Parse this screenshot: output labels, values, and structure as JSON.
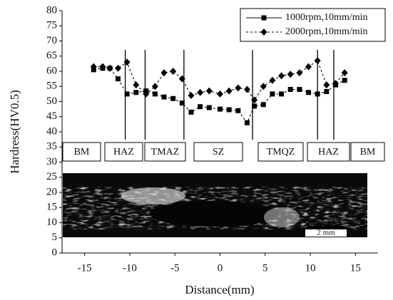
{
  "chart_data": {
    "type": "line",
    "x_label": "Distance(mm)",
    "y_label": "Hardress(HV0.5)",
    "xlim": [
      -17.5,
      17.5
    ],
    "xticks": [
      -15,
      -10,
      -5,
      0,
      5,
      10,
      15
    ],
    "ylim": [
      0,
      80
    ],
    "yticks": [
      0,
      5,
      10,
      15,
      20,
      25,
      30,
      35,
      40,
      45,
      50,
      55,
      60,
      65,
      70,
      75,
      80
    ],
    "x": [
      -14,
      -13,
      -12.2,
      -11.3,
      -10.3,
      -9.3,
      -8.2,
      -7.2,
      -6.2,
      -5.2,
      -4.2,
      -3.2,
      -2.2,
      -1.2,
      0,
      1,
      2,
      3,
      3.8,
      4.8,
      5.8,
      6.8,
      7.8,
      8.8,
      9.8,
      10.8,
      11.8,
      12.8,
      13.8
    ],
    "series": [
      {
        "name": "1000rpm,10mm/min",
        "marker": "square",
        "color": "#000000",
        "values": [
          60.5,
          61,
          61,
          57.5,
          52.5,
          53,
          53.5,
          52.5,
          51.5,
          51,
          49.5,
          46.5,
          48.3,
          48,
          47.5,
          47.3,
          47,
          43,
          48.5,
          49,
          52.5,
          52.5,
          54,
          54,
          53,
          52.5,
          53.3,
          55.5,
          57
        ]
      },
      {
        "name": "2000rpm,10mm/min",
        "marker": "diamond",
        "color": "#000000",
        "values": [
          61.5,
          61.5,
          61,
          61,
          63,
          55.5,
          52.5,
          55,
          59.5,
          60,
          57.5,
          52,
          53,
          53.5,
          52.5,
          53.5,
          54.5,
          54,
          50.5,
          55,
          57,
          58.5,
          59,
          59.5,
          61.5,
          63.5,
          55.5,
          56,
          59.5
        ]
      }
    ],
    "boundaries": [
      -10.5,
      -8.3,
      -4,
      3.6,
      10.8,
      12.6
    ],
    "zones": [
      "BM",
      "HAZ",
      "TMAZ",
      "SZ",
      "TMQZ",
      "HAZ",
      "BM"
    ],
    "scale_bar": "2 mm"
  }
}
